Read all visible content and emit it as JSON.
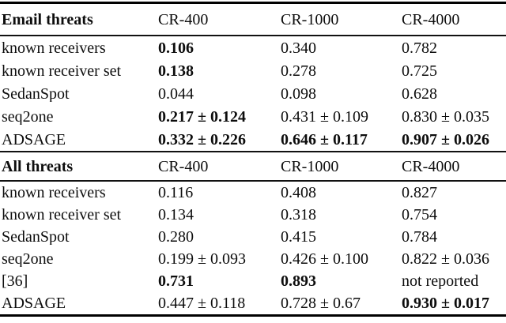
{
  "table": {
    "sections": [
      {
        "title": "Email threats",
        "columns": [
          "CR-400",
          "CR-1000",
          "CR-4000"
        ],
        "rows": [
          {
            "label": "known receivers",
            "cells": [
              {
                "text": "0.106",
                "bold": true
              },
              {
                "text": "0.340",
                "bold": false
              },
              {
                "text": "0.782",
                "bold": false
              }
            ]
          },
          {
            "label": "known receiver set",
            "cells": [
              {
                "text": "0.138",
                "bold": true
              },
              {
                "text": "0.278",
                "bold": false
              },
              {
                "text": "0.725",
                "bold": false
              }
            ]
          },
          {
            "label": "SedanSpot",
            "cells": [
              {
                "text": "0.044",
                "bold": false
              },
              {
                "text": "0.098",
                "bold": false
              },
              {
                "text": "0.628",
                "bold": false
              }
            ]
          },
          {
            "label": "seq2one",
            "cells": [
              {
                "text": "0.217 ± 0.124",
                "bold": true
              },
              {
                "text": "0.431 ± 0.109",
                "bold": false
              },
              {
                "text": "0.830 ± 0.035",
                "bold": false
              }
            ]
          },
          {
            "label": "ADSAGE",
            "cells": [
              {
                "text": "0.332 ± 0.226",
                "bold": true
              },
              {
                "text": "0.646 ± 0.117",
                "bold": true
              },
              {
                "text": "0.907 ± 0.026",
                "bold": true
              }
            ]
          }
        ]
      },
      {
        "title": "All threats",
        "columns": [
          "CR-400",
          "CR-1000",
          "CR-4000"
        ],
        "rows": [
          {
            "label": "known receivers",
            "cells": [
              {
                "text": "0.116",
                "bold": false
              },
              {
                "text": "0.408",
                "bold": false
              },
              {
                "text": "0.827",
                "bold": false
              }
            ]
          },
          {
            "label": "known receiver set",
            "cells": [
              {
                "text": "0.134",
                "bold": false
              },
              {
                "text": "0.318",
                "bold": false
              },
              {
                "text": "0.754",
                "bold": false
              }
            ]
          },
          {
            "label": "SedanSpot",
            "cells": [
              {
                "text": "0.280",
                "bold": false
              },
              {
                "text": "0.415",
                "bold": false
              },
              {
                "text": "0.784",
                "bold": false
              }
            ]
          },
          {
            "label": "seq2one",
            "cells": [
              {
                "text": "0.199 ± 0.093",
                "bold": false
              },
              {
                "text": "0.426 ± 0.100",
                "bold": false
              },
              {
                "text": "0.822 ± 0.036",
                "bold": false
              }
            ]
          },
          {
            "label": "[36]",
            "cells": [
              {
                "text": "0.731",
                "bold": true
              },
              {
                "text": "0.893",
                "bold": true
              },
              {
                "text": "not reported",
                "bold": false
              }
            ]
          },
          {
            "label": "ADSAGE",
            "cells": [
              {
                "text": "0.447 ± 0.118",
                "bold": false
              },
              {
                "text": "0.728 ± 0.67",
                "bold": false
              },
              {
                "text": "0.930 ± 0.017",
                "bold": true
              }
            ]
          }
        ]
      }
    ],
    "colors": {
      "text": "#0d0d0d",
      "rule": "#111111",
      "background": "#ffffff"
    }
  }
}
